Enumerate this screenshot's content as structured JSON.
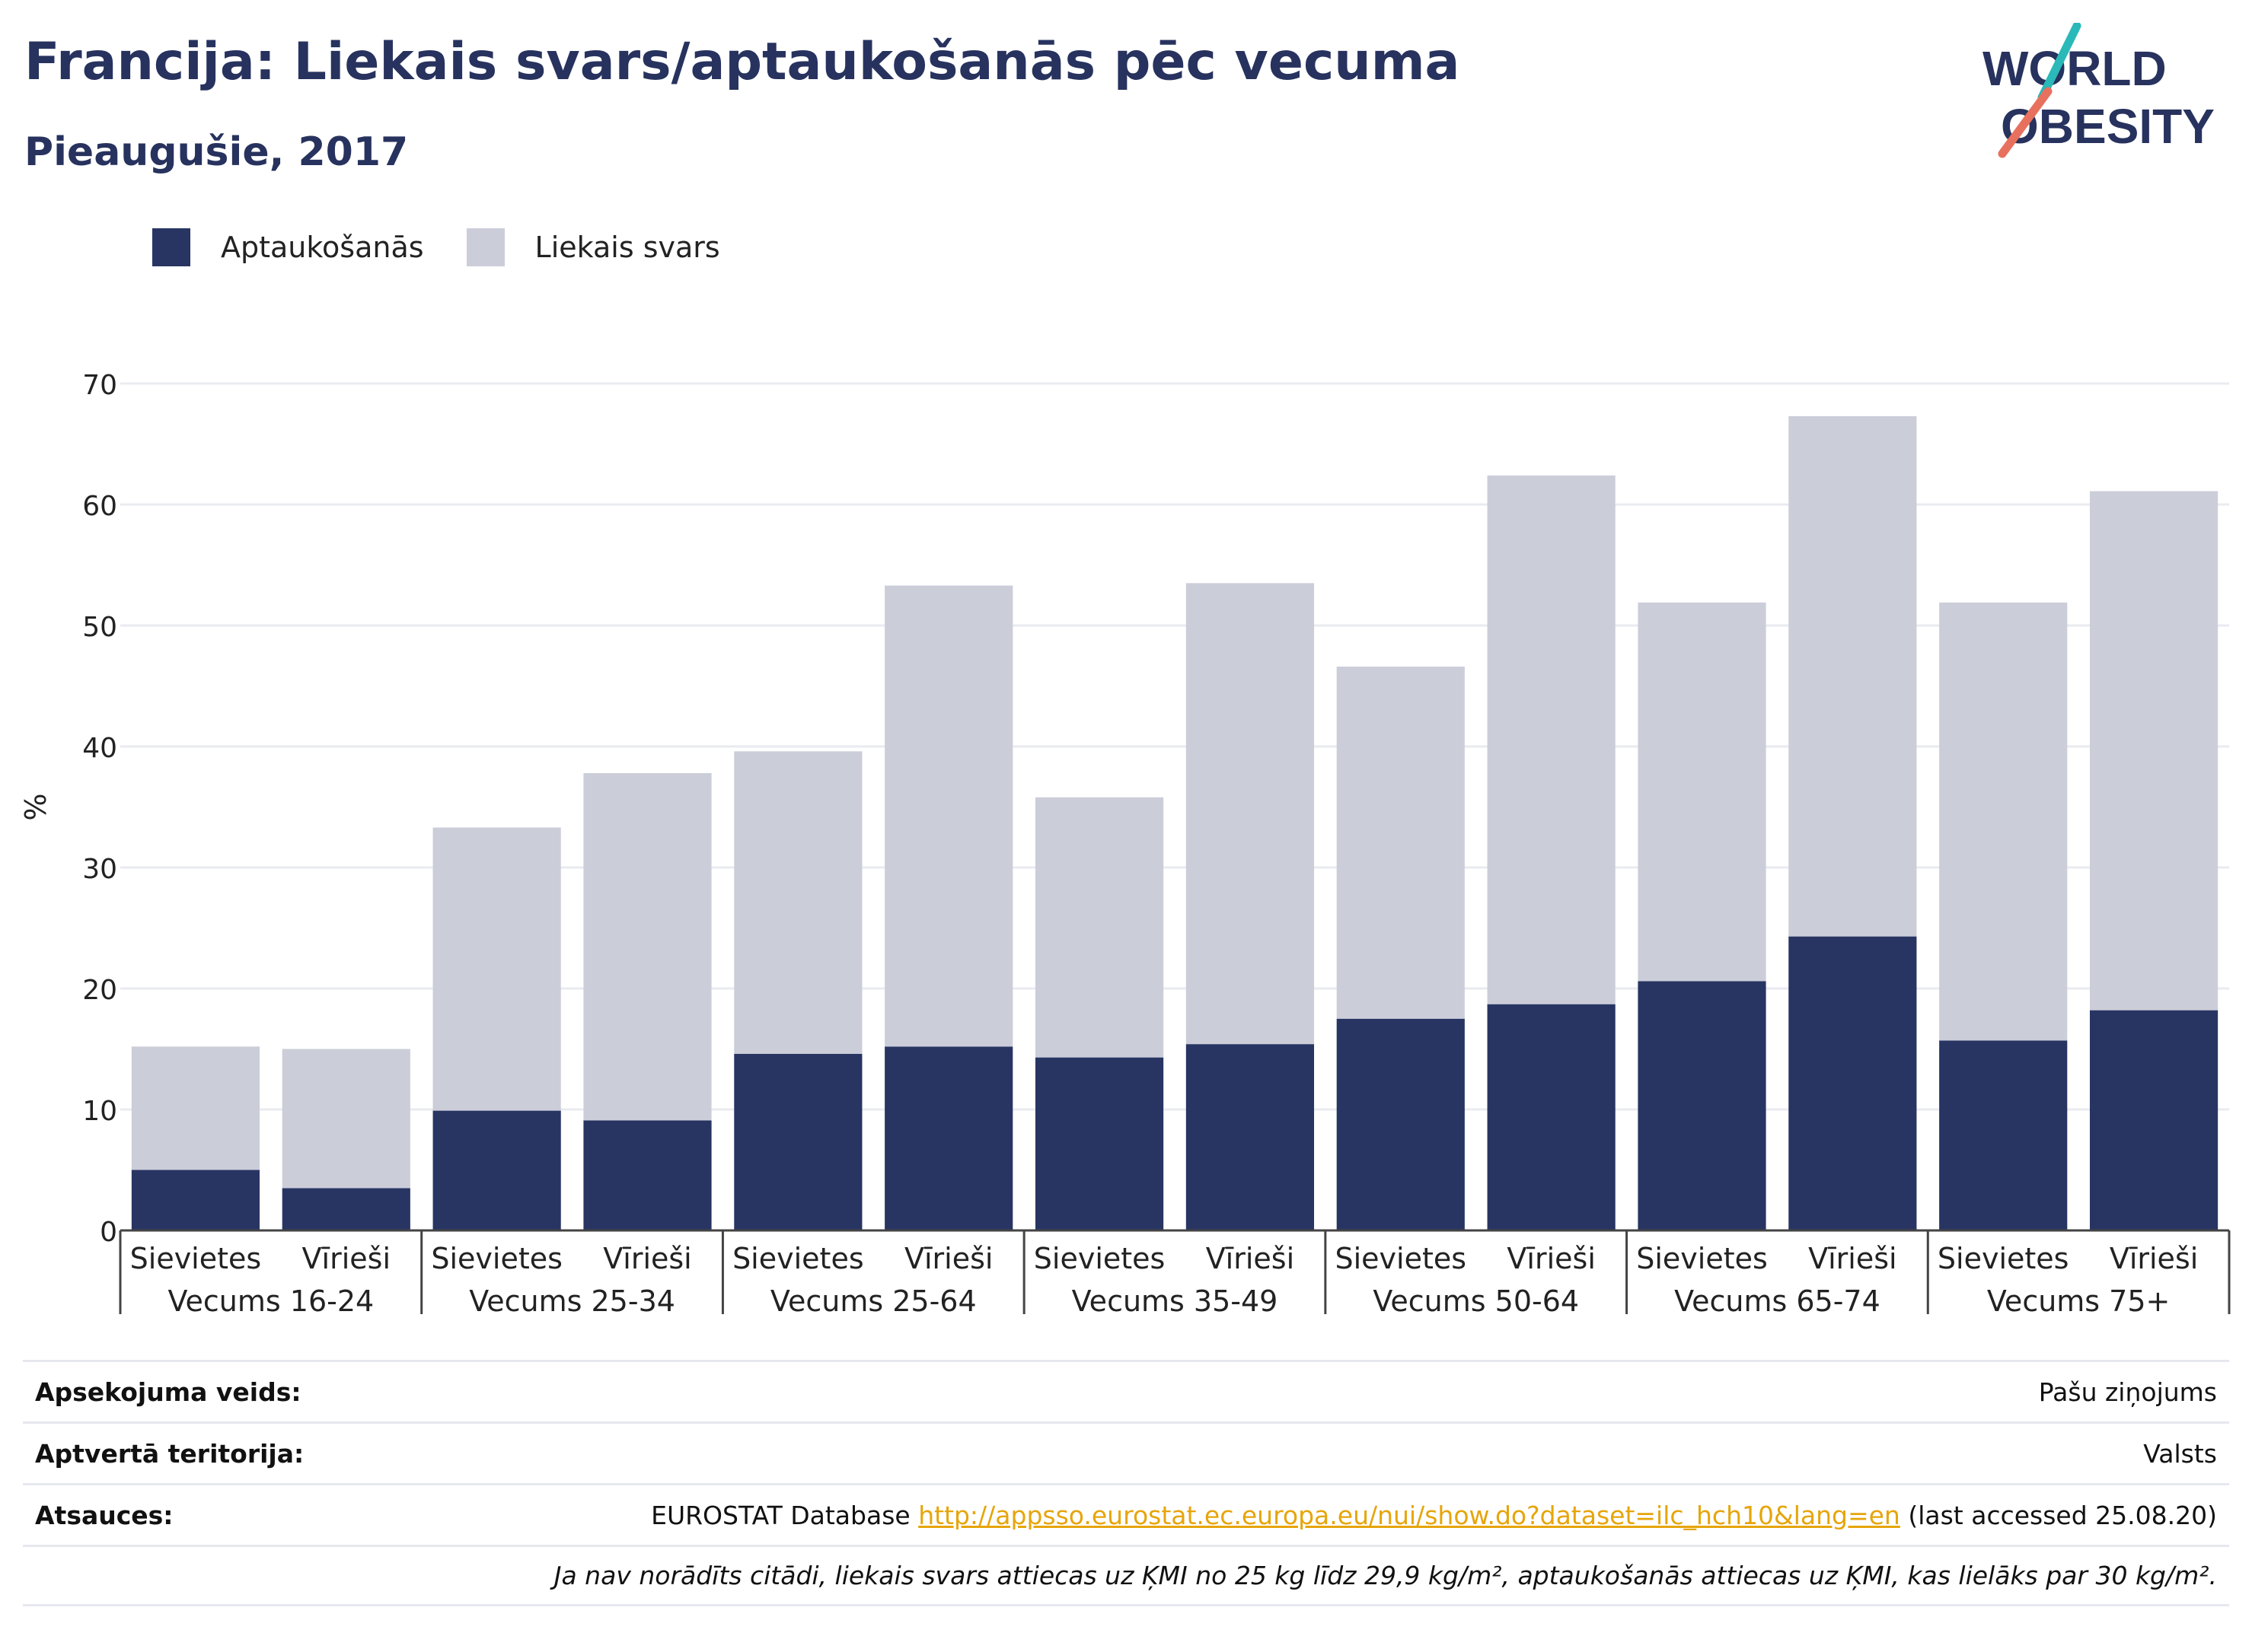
{
  "title": "Francija: Liekais svars/aptaukošanās pēc vecuma",
  "subtitle": "Pieaugušie, 2017",
  "logo": {
    "line1": "WORLD",
    "line2": "OBESITY"
  },
  "colors": {
    "obesity": "#283563",
    "overweight": "#cbcdd9",
    "accent_teal": "#2ab8b8",
    "accent_red": "#e8705e",
    "link": "#e6a50a"
  },
  "chart_data": {
    "type": "bar",
    "stacked": true,
    "ylabel": "%",
    "ylim": [
      0,
      70
    ],
    "yticks": [
      0,
      10,
      20,
      30,
      40,
      50,
      60,
      70
    ],
    "grid": true,
    "legend_position": "top-left",
    "groups": [
      "Vecums 16-24",
      "Vecums 25-34",
      "Vecums 25-64",
      "Vecums 35-49",
      "Vecums 50-64",
      "Vecums 65-74",
      "Vecums 75+"
    ],
    "categories": [
      "Sievietes",
      "Vīrieši",
      "Sievietes",
      "Vīrieši",
      "Sievietes",
      "Vīrieši",
      "Sievietes",
      "Vīrieši",
      "Sievietes",
      "Vīrieši",
      "Sievietes",
      "Vīrieši",
      "Sievietes",
      "Vīrieši"
    ],
    "series": [
      {
        "name": "Aptaukošanās",
        "values": [
          5.0,
          3.5,
          9.9,
          9.1,
          14.6,
          15.2,
          14.3,
          15.4,
          17.5,
          18.7,
          20.6,
          24.3,
          15.7,
          18.2
        ]
      },
      {
        "name": "Liekais svars",
        "values": [
          10.2,
          11.5,
          23.4,
          28.7,
          25.0,
          38.1,
          21.5,
          38.1,
          29.1,
          43.7,
          31.3,
          43.0,
          36.2,
          42.9
        ]
      }
    ]
  },
  "footer": {
    "survey_label": "Apsekojuma veids:",
    "survey_value": "Pašu ziņojums",
    "territory_label": "Aptvertā teritorija:",
    "territory_value": "Valsts",
    "refs_label": "Atsauces:",
    "refs_prefix": "EUROSTAT Database ",
    "refs_link": "http://appsso.eurostat.ec.europa.eu/nui/show.do?dataset=ilc_hch10&lang=en",
    "refs_suffix": " (last accessed 25.08.20)",
    "note": "Ja nav norādīts citādi, liekais svars attiecas uz ĶMI no 25 kg līdz 29,9 kg/m², aptaukošanās attiecas uz ĶMI, kas lielāks par 30 kg/m²."
  }
}
